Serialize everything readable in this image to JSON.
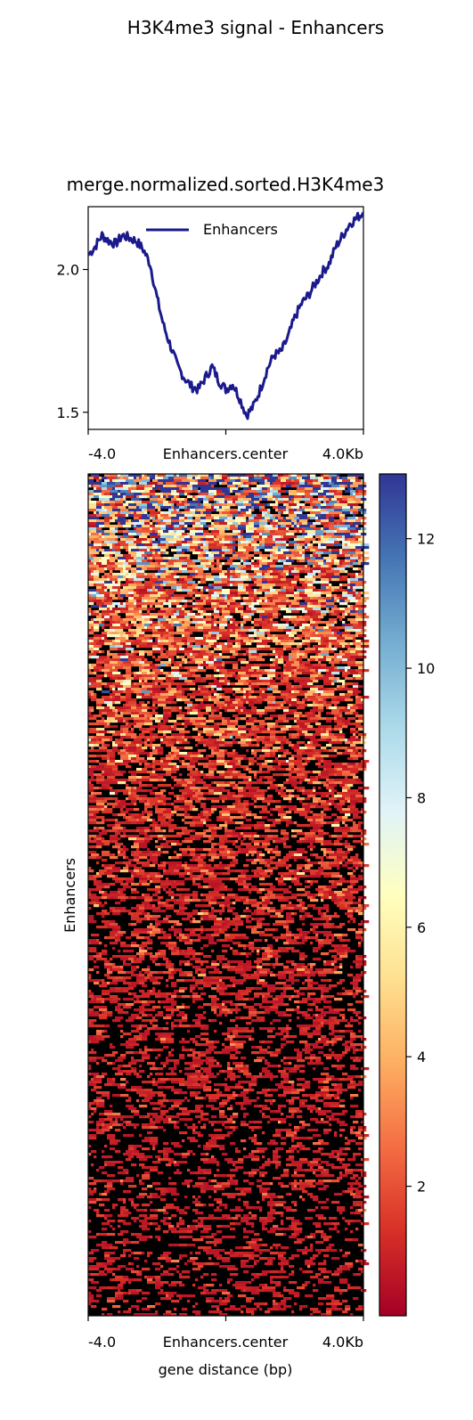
{
  "figure": {
    "title": "H3K4me3 signal - Enhancers"
  },
  "chart_data": [
    {
      "type": "line",
      "title": "merge.normalized.sorted.H3K4me3",
      "xlabel": "",
      "ylabel": "",
      "x_tick_labels": [
        "-4.0",
        "Enhancers.center",
        "4.0Kb"
      ],
      "x_range": [
        -4000,
        4000
      ],
      "ylim": [
        1.44,
        2.22
      ],
      "y_ticks": [
        1.5,
        2.0
      ],
      "y_tick_labels": [
        "1.5",
        "2.0"
      ],
      "legend": {
        "placement": "top-center",
        "entries": [
          "Enhancers"
        ]
      },
      "series": [
        {
          "name": "Enhancers",
          "color": "#1a1a8c",
          "x": [
            -4000,
            -3800,
            -3600,
            -3400,
            -3200,
            -3000,
            -2800,
            -2600,
            -2400,
            -2200,
            -2000,
            -1800,
            -1600,
            -1400,
            -1200,
            -1000,
            -800,
            -600,
            -400,
            -200,
            0,
            200,
            400,
            600,
            800,
            1000,
            1200,
            1400,
            1600,
            1800,
            2000,
            2200,
            2400,
            2600,
            2800,
            3000,
            3200,
            3400,
            3600,
            3800,
            4000
          ],
          "values": [
            2.05,
            2.08,
            2.12,
            2.1,
            2.09,
            2.12,
            2.11,
            2.1,
            2.07,
            2.02,
            1.9,
            1.8,
            1.73,
            1.66,
            1.62,
            1.59,
            1.58,
            1.62,
            1.66,
            1.61,
            1.58,
            1.6,
            1.55,
            1.49,
            1.52,
            1.58,
            1.65,
            1.7,
            1.71,
            1.76,
            1.83,
            1.88,
            1.91,
            1.95,
            1.99,
            2.02,
            2.08,
            2.12,
            2.16,
            2.18,
            2.2
          ]
        }
      ]
    },
    {
      "type": "heatmap",
      "title": "",
      "xlabel": "gene distance (bp)",
      "ylabel": "Enhancers",
      "x_tick_labels": [
        "-4.0",
        "Enhancers.center",
        "4.0Kb"
      ],
      "colormap": "RdYlBu",
      "color_range": [
        0,
        13
      ],
      "colorbar_ticks": [
        2,
        4,
        6,
        8,
        10,
        12
      ],
      "colorbar_tick_labels": [
        "2",
        "4",
        "6",
        "8",
        "10",
        "12"
      ],
      "colorbar_stops": [
        "#a50026",
        "#d73027",
        "#f46d43",
        "#fdae61",
        "#fee090",
        "#ffffbf",
        "#e0f3f8",
        "#abd9e9",
        "#74add1",
        "#4575b4",
        "#313695"
      ]
    }
  ]
}
